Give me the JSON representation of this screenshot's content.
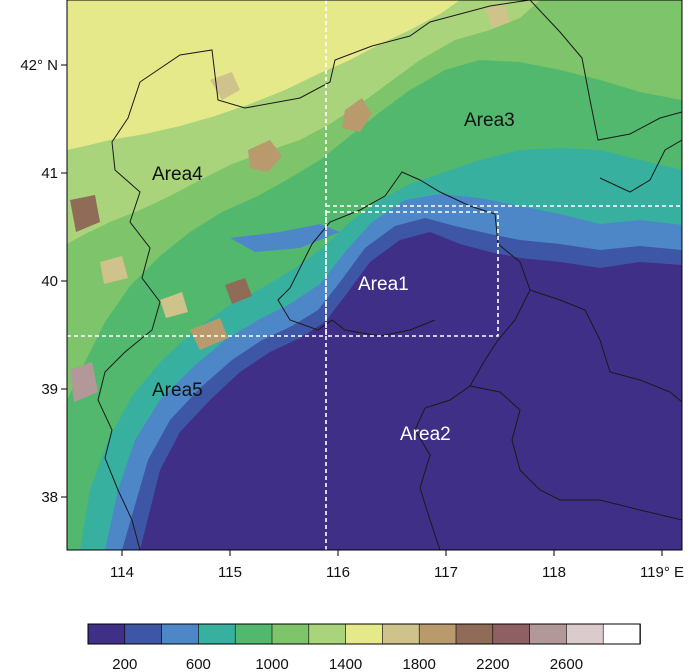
{
  "map": {
    "lat_labels": [
      "42° N",
      "41",
      "40",
      "39",
      "38"
    ],
    "lon_labels": [
      "114",
      "115",
      "116",
      "117",
      "118",
      "119° E"
    ],
    "areas": [
      {
        "name": "Area1",
        "color": "#ffffff"
      },
      {
        "name": "Area2",
        "color": "#ffffff"
      },
      {
        "name": "Area3",
        "color": "#111111"
      },
      {
        "name": "Area4",
        "color": "#111111"
      },
      {
        "name": "Area5",
        "color": "#111111"
      }
    ]
  },
  "colorbar": {
    "colors": [
      "#3f2f86",
      "#3e56a6",
      "#4e87c8",
      "#38b0a0",
      "#52b86e",
      "#7dc46a",
      "#a9d47c",
      "#e6e98a",
      "#cfc28b",
      "#b89a6d",
      "#8f6b58",
      "#8e6064",
      "#b3989a",
      "#dccbcc",
      "#ffffff"
    ],
    "labels": [
      "200",
      "600",
      "1000",
      "1400",
      "1800",
      "2200",
      "2600"
    ]
  },
  "colors": {
    "plain": "#3f2f86",
    "boundary": "#1a1a1a",
    "box_line": "#ffffff"
  }
}
